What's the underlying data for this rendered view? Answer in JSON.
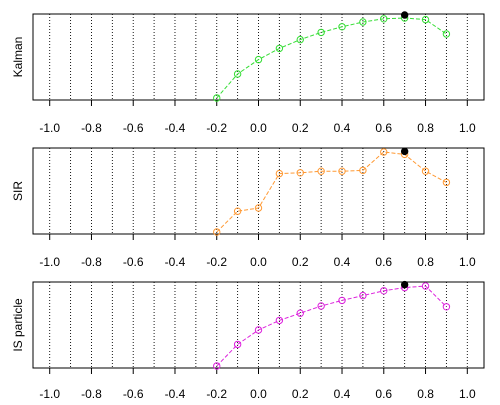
{
  "chart_data": [
    {
      "type": "line",
      "ylabel": "Kalman",
      "x_ticks": [
        -1.0,
        -0.8,
        -0.6,
        -0.4,
        -0.2,
        0.0,
        0.2,
        0.4,
        0.6,
        0.8,
        1.0
      ],
      "x_tick_labels": [
        "-1.0",
        "-0.8",
        "-0.6",
        "-0.4",
        "-0.2",
        "0.0",
        "0.2",
        "0.4",
        "0.6",
        "0.8",
        "1.0"
      ],
      "xlim": [
        -1.08,
        1.08
      ],
      "ylim": [
        0.0,
        1.0
      ],
      "grid": "vertical dotted at every 0.1",
      "y_axis_ticks": false,
      "series": [
        {
          "color": "#33dd33",
          "marker": "open-circle",
          "line": "dashed",
          "x": [
            -0.2,
            -0.1,
            0.0,
            0.1,
            0.2,
            0.3,
            0.4,
            0.5,
            0.6,
            0.7,
            0.8,
            0.9
          ],
          "values": [
            0.0,
            0.3,
            0.48,
            0.62,
            0.73,
            0.82,
            0.89,
            0.95,
            0.99,
            1.0,
            0.98,
            0.8
          ]
        }
      ],
      "highlight": {
        "x": 0.7,
        "value": 1.0,
        "color": "#000000",
        "marker": "filled-circle"
      }
    },
    {
      "type": "line",
      "ylabel": "SIR",
      "x_ticks": [
        -1.0,
        -0.8,
        -0.6,
        -0.4,
        -0.2,
        0.0,
        0.2,
        0.4,
        0.6,
        0.8,
        1.0
      ],
      "x_tick_labels": [
        "-1.0",
        "-0.8",
        "-0.6",
        "-0.4",
        "-0.2",
        "0.0",
        "0.2",
        "0.4",
        "0.6",
        "0.8",
        "1.0"
      ],
      "xlim": [
        -1.08,
        1.08
      ],
      "ylim": [
        0.0,
        1.0
      ],
      "grid": "vertical dotted at every 0.1",
      "y_axis_ticks": false,
      "series": [
        {
          "color": "#ff9933",
          "marker": "open-circle",
          "line": "dashed",
          "x": [
            -0.2,
            -0.1,
            0.0,
            0.1,
            0.2,
            0.3,
            0.4,
            0.5,
            0.6,
            0.7,
            0.8,
            0.9
          ],
          "values": [
            0.0,
            0.26,
            0.3,
            0.73,
            0.74,
            0.76,
            0.76,
            0.77,
            1.0,
            0.97,
            0.76,
            0.62
          ]
        }
      ],
      "highlight": {
        "x": 0.7,
        "value": 0.97,
        "color": "#000000",
        "marker": "filled-circle"
      }
    },
    {
      "type": "line",
      "ylabel": "IS particle",
      "x_ticks": [
        -1.0,
        -0.8,
        -0.6,
        -0.4,
        -0.2,
        0.0,
        0.2,
        0.4,
        0.6,
        0.8,
        1.0
      ],
      "x_tick_labels": [
        "-1.0",
        "-0.8",
        "-0.6",
        "-0.4",
        "-0.2",
        "0.0",
        "0.2",
        "0.4",
        "0.6",
        "0.8",
        "1.0"
      ],
      "xlim": [
        -1.08,
        1.08
      ],
      "ylim": [
        0.0,
        1.0
      ],
      "grid": "vertical dotted at every 0.1",
      "y_axis_ticks": false,
      "series": [
        {
          "color": "#dd22dd",
          "marker": "open-circle",
          "line": "dashed",
          "x": [
            -0.2,
            -0.1,
            0.0,
            0.1,
            0.2,
            0.3,
            0.4,
            0.5,
            0.6,
            0.7,
            0.8,
            0.9
          ],
          "values": [
            0.0,
            0.27,
            0.45,
            0.57,
            0.66,
            0.75,
            0.82,
            0.88,
            0.94,
            0.98,
            1.0,
            0.74
          ]
        }
      ],
      "highlight": {
        "x": 0.7,
        "value": 0.98,
        "color": "#000000",
        "marker": "filled-circle"
      }
    }
  ]
}
